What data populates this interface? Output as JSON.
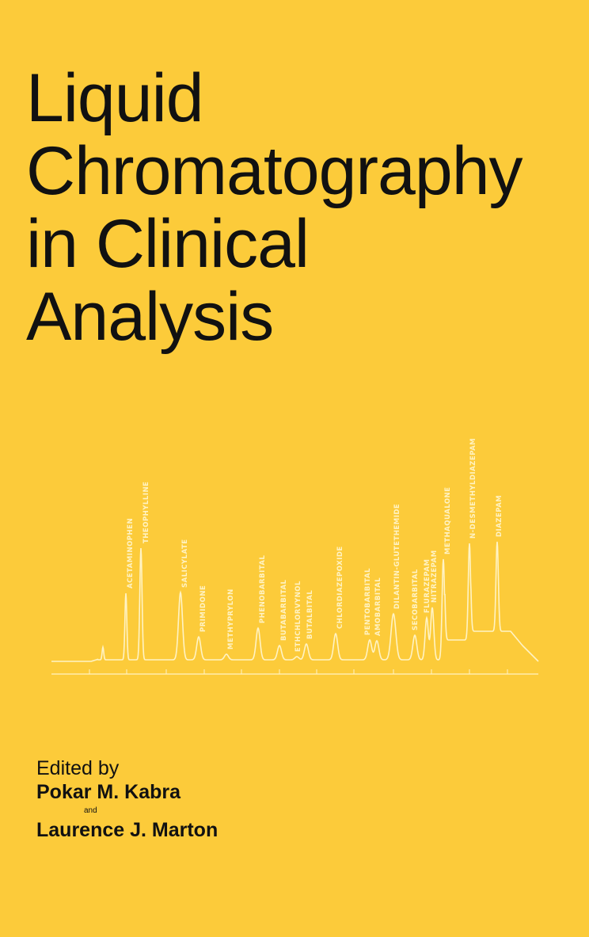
{
  "cover": {
    "title_lines": [
      "Liquid",
      "Chromatography",
      "in Clinical",
      "Analysis"
    ],
    "edited_by": "Edited by",
    "editor_1": "Pokar M. Kabra",
    "and": "and",
    "editor_2": "Laurence J. Marton"
  },
  "colors": {
    "background": "#FCCB3A",
    "trace": "#FFF3C4",
    "text": "#111111"
  },
  "chromatogram_peaks": [
    "ACETAMINOPHEN",
    "THEOPHYLLINE",
    "SALICYLATE",
    "PRIMIDONE",
    "METHYPRYLON",
    "PHENOBARBITAL",
    "BUTABARBITAL",
    "ETHCHLORVYNOL",
    "BUTALBITAL",
    "CHLORDIAZEPOXIDE",
    "PENTOBARBITAL",
    "AMOBARBITAL",
    "DILANTIN-GLUTETHEMIDE",
    "SECOBARBITAL",
    "FLURAZEPAM",
    "NITRAZEPAM",
    "METHAQUALONE",
    "N-DESMETHYLDIAZEPAM",
    "DIAZEPAM"
  ]
}
